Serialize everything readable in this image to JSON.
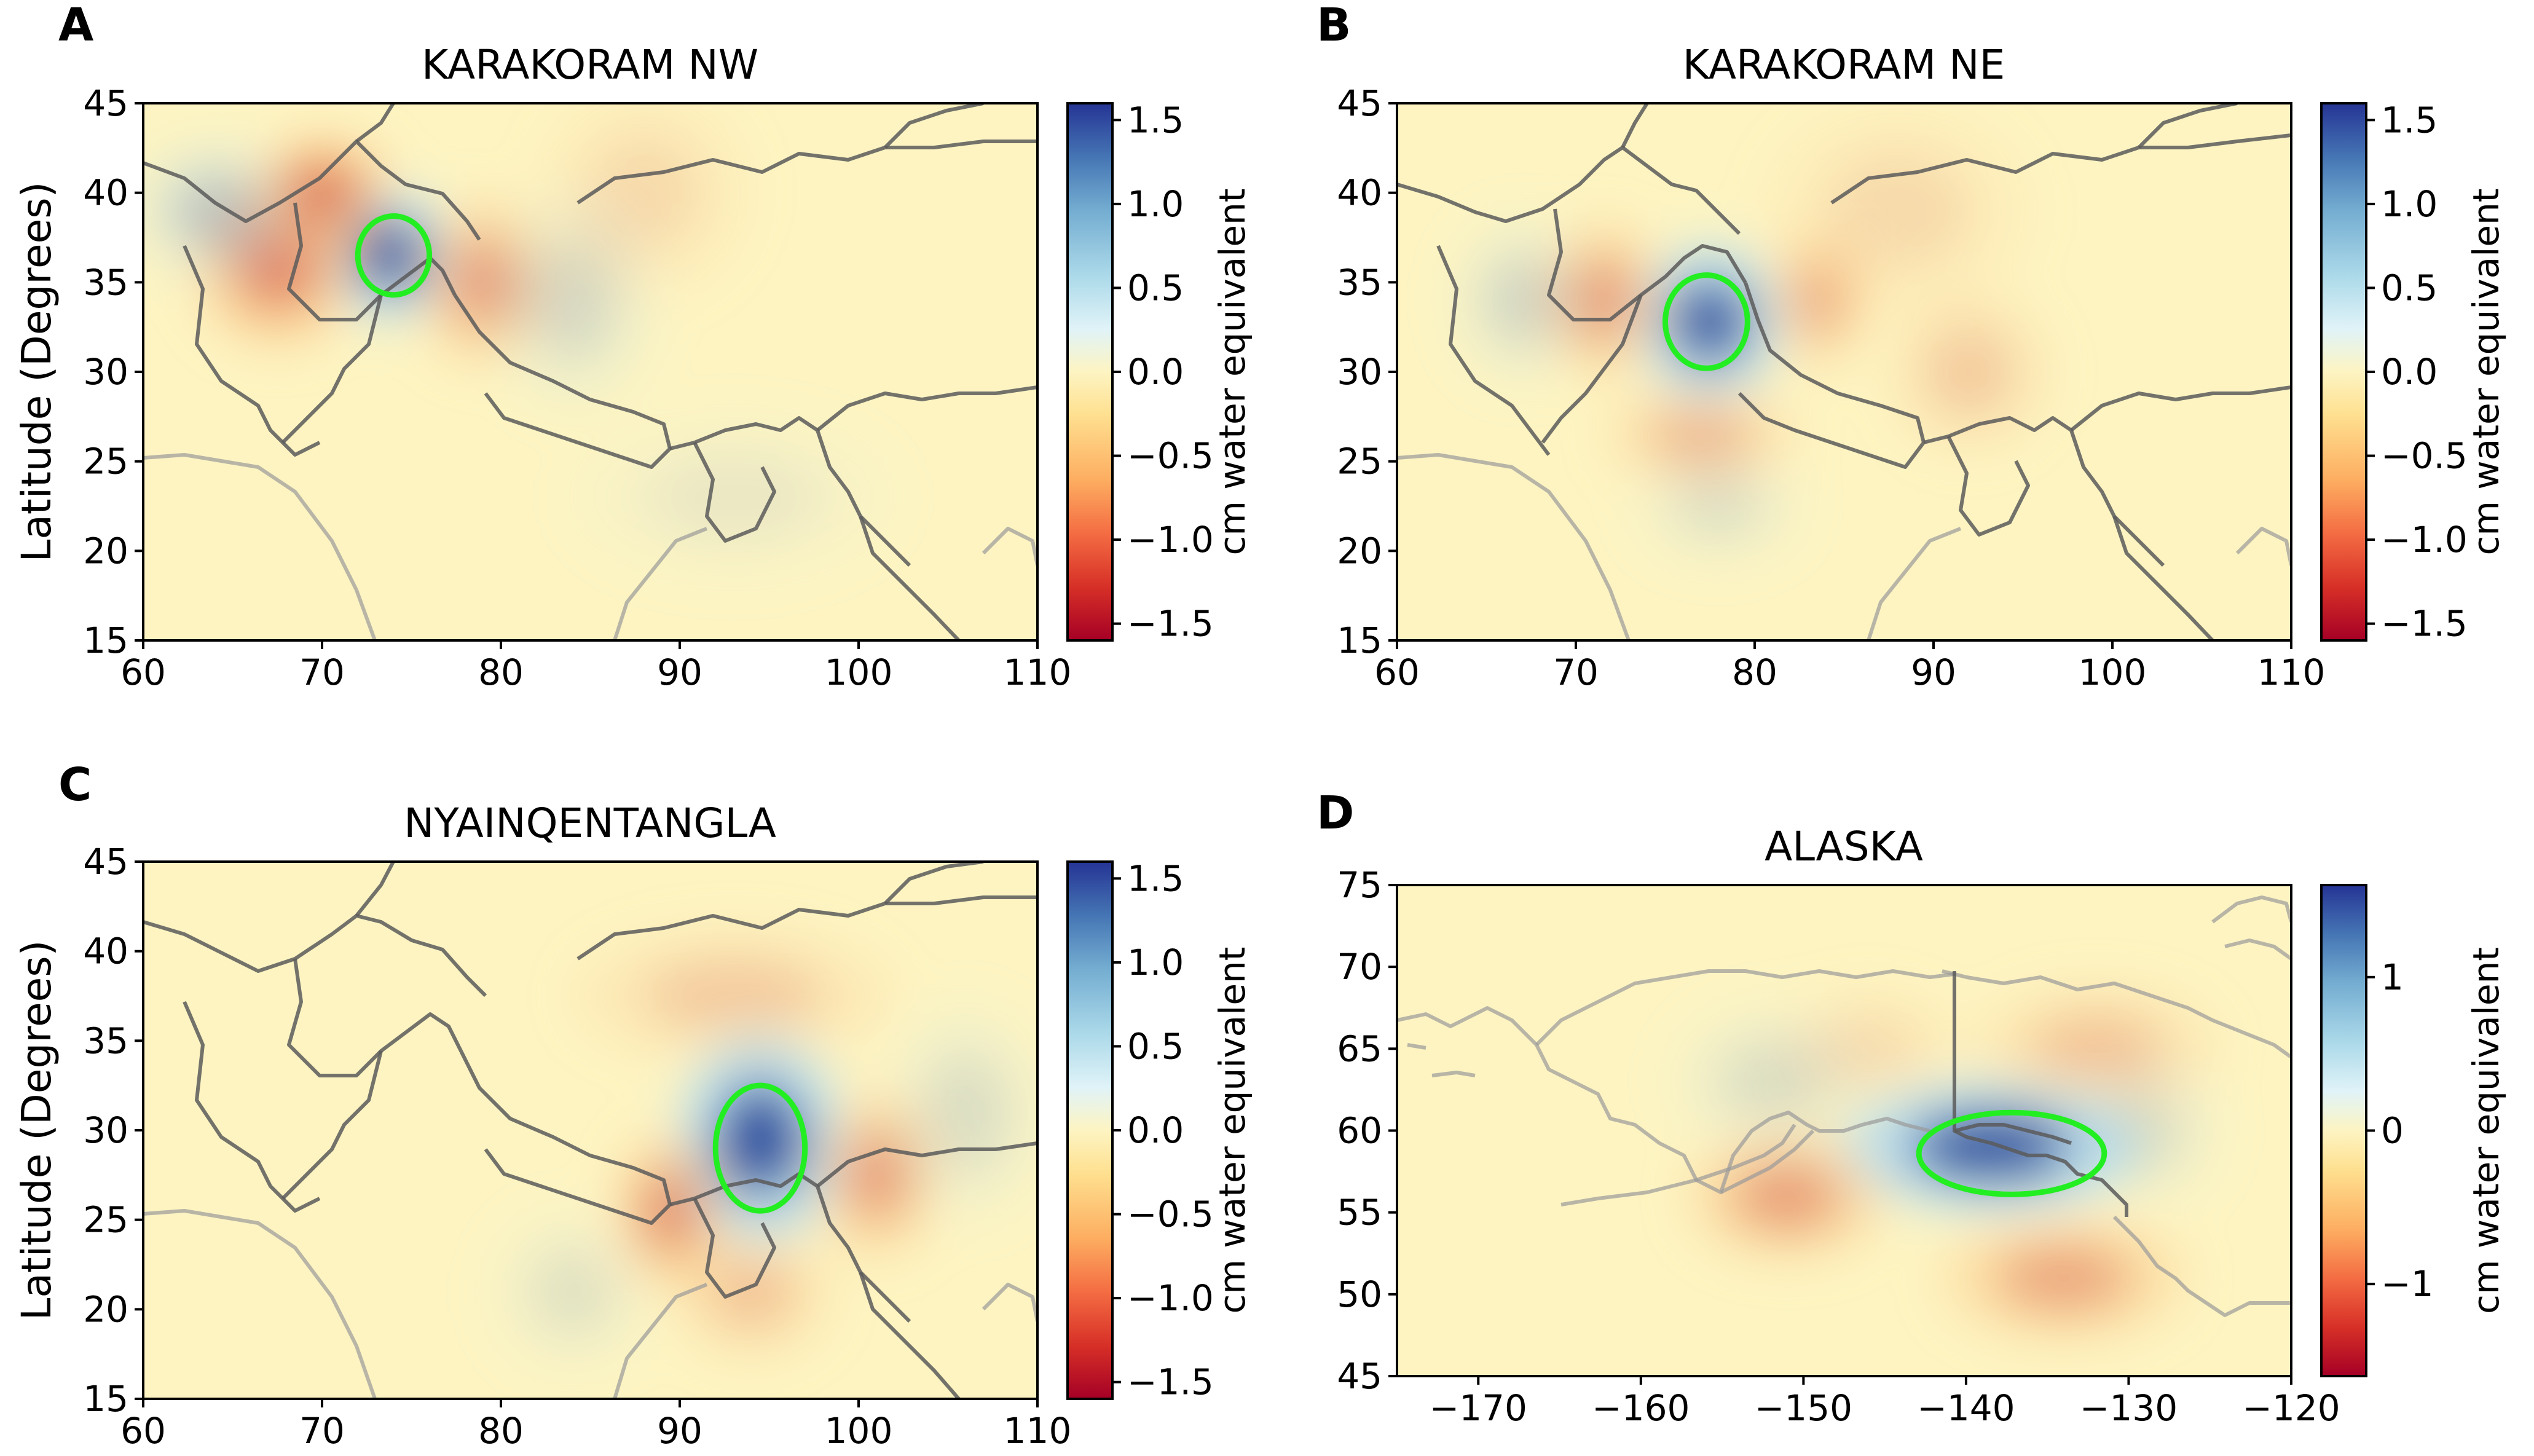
{
  "colors": {
    "background": "#ffffff",
    "field_base": "#fdf4c2",
    "positive": "#2b4fa0",
    "negative": "#c9302b",
    "region_outline": "#22ee22"
  },
  "chart_data": [
    {
      "letter": "A",
      "type": "heatmap",
      "title": "KARAKORAM NW",
      "xlabel": "",
      "ylabel": "Latitude (Degrees)",
      "xlim": [
        60,
        110
      ],
      "ylim": [
        15,
        45
      ],
      "xticks": [
        "60",
        "70",
        "80",
        "90",
        "100",
        "110"
      ],
      "yticks": [
        "15",
        "20",
        "25",
        "30",
        "35",
        "40",
        "45"
      ],
      "colorbar": {
        "label": "cm water equivalent",
        "range": [
          -1.6,
          1.6
        ],
        "ticks": [
          "1.5",
          "1.0",
          "0.5",
          "0.0",
          "−0.5",
          "−1.0",
          "−1.5"
        ],
        "tick_values": [
          1.5,
          1.0,
          0.5,
          0.0,
          -0.5,
          -1.0,
          -1.5
        ]
      },
      "region": {
        "lon": 74,
        "lat": 36.5,
        "rx_deg": 2.0,
        "ry_deg": 2.2
      },
      "features": [
        {
          "lon": 73.8,
          "lat": 36.5,
          "amp": 1.6,
          "sx": 2.2,
          "sy": 2.4
        },
        {
          "lon": 67.5,
          "lat": 36,
          "amp": -0.6,
          "sx": 3,
          "sy": 3
        },
        {
          "lon": 70,
          "lat": 40,
          "amp": -0.7,
          "sx": 2.5,
          "sy": 2.0
        },
        {
          "lon": 79,
          "lat": 35,
          "amp": -0.45,
          "sx": 2.5,
          "sy": 3
        },
        {
          "lon": 64,
          "lat": 39,
          "amp": 0.3,
          "sx": 3,
          "sy": 2.5
        },
        {
          "lon": 84,
          "lat": 34,
          "amp": 0.18,
          "sx": 3,
          "sy": 4
        },
        {
          "lon": 88,
          "lat": 40,
          "amp": -0.12,
          "sx": 4,
          "sy": 4
        },
        {
          "lon": 93,
          "lat": 23,
          "amp": 0.08,
          "sx": 6,
          "sy": 3
        }
      ]
    },
    {
      "letter": "B",
      "type": "heatmap",
      "title": "KARAKORAM NE",
      "xlabel": "",
      "ylabel": "",
      "xlim": [
        60,
        110
      ],
      "ylim": [
        15,
        45
      ],
      "xticks": [
        "60",
        "70",
        "80",
        "90",
        "100",
        "110"
      ],
      "yticks": [
        "15",
        "20",
        "25",
        "30",
        "35",
        "40",
        "45"
      ],
      "colorbar": {
        "label": "cm water equivalent",
        "range": [
          -1.6,
          1.6
        ],
        "ticks": [
          "1.5",
          "1.0",
          "0.5",
          "0.0",
          "−0.5",
          "−1.0",
          "−1.5"
        ],
        "tick_values": [
          1.5,
          1.0,
          0.5,
          0.0,
          -0.5,
          -1.0,
          -1.5
        ]
      },
      "region": {
        "lon": 77.3,
        "lat": 32.8,
        "rx_deg": 2.3,
        "ry_deg": 2.6
      },
      "features": [
        {
          "lon": 77.5,
          "lat": 32.8,
          "amp": 1.7,
          "sx": 2.6,
          "sy": 2.8
        },
        {
          "lon": 71.5,
          "lat": 34,
          "amp": -0.45,
          "sx": 2.3,
          "sy": 2.8
        },
        {
          "lon": 83.5,
          "lat": 34,
          "amp": -0.35,
          "sx": 2.0,
          "sy": 2.5
        },
        {
          "lon": 77,
          "lat": 26.5,
          "amp": -0.3,
          "sx": 3.5,
          "sy": 2.0
        },
        {
          "lon": 67,
          "lat": 34,
          "amp": 0.2,
          "sx": 2.5,
          "sy": 3
        },
        {
          "lon": 78,
          "lat": 22.5,
          "amp": 0.15,
          "sx": 3,
          "sy": 2
        },
        {
          "lon": 92,
          "lat": 30,
          "amp": -0.2,
          "sx": 3,
          "sy": 3
        },
        {
          "lon": 88,
          "lat": 39,
          "amp": -0.12,
          "sx": 5,
          "sy": 4
        }
      ]
    },
    {
      "letter": "C",
      "type": "heatmap",
      "title": "NYAINQENTANGLA",
      "xlabel": "",
      "ylabel": "Latitude (Degrees)",
      "xlim": [
        60,
        110
      ],
      "ylim": [
        15,
        45
      ],
      "xticks": [
        "60",
        "70",
        "80",
        "90",
        "100",
        "110"
      ],
      "yticks": [
        "15",
        "20",
        "25",
        "30",
        "35",
        "40",
        "45"
      ],
      "colorbar": {
        "label": "cm water equivalent",
        "range": [
          -1.6,
          1.6
        ],
        "ticks": [
          "1.5",
          "1.0",
          "0.5",
          "0.0",
          "−0.5",
          "−1.0",
          "−1.5"
        ],
        "tick_values": [
          1.5,
          1.0,
          0.5,
          0.0,
          -0.5,
          -1.0,
          -1.5
        ]
      },
      "region": {
        "lon": 94.5,
        "lat": 29,
        "rx_deg": 2.5,
        "ry_deg": 3.5
      },
      "features": [
        {
          "lon": 94.5,
          "lat": 29.5,
          "amp": 1.7,
          "sx": 3.0,
          "sy": 3.8
        },
        {
          "lon": 89.5,
          "lat": 25.5,
          "amp": -0.55,
          "sx": 2.0,
          "sy": 2.8
        },
        {
          "lon": 101,
          "lat": 27.5,
          "amp": -0.45,
          "sx": 2.3,
          "sy": 3
        },
        {
          "lon": 94,
          "lat": 21,
          "amp": -0.25,
          "sx": 3,
          "sy": 2.5
        },
        {
          "lon": 93,
          "lat": 37.5,
          "amp": -0.2,
          "sx": 6,
          "sy": 2.5
        },
        {
          "lon": 106,
          "lat": 31,
          "amp": 0.15,
          "sx": 3,
          "sy": 4
        },
        {
          "lon": 84,
          "lat": 21,
          "amp": 0.12,
          "sx": 3,
          "sy": 3
        }
      ]
    },
    {
      "letter": "D",
      "type": "heatmap",
      "title": "ALASKA",
      "xlabel": "",
      "ylabel": "",
      "xlim": [
        -175,
        -120
      ],
      "ylim": [
        45,
        75
      ],
      "xticks": [
        "−170",
        "−160",
        "−150",
        "−140",
        "−130",
        "−120"
      ],
      "xtick_values": [
        -170,
        -160,
        -150,
        -140,
        -130,
        -120
      ],
      "yticks": [
        "45",
        "50",
        "55",
        "60",
        "65",
        "70",
        "75"
      ],
      "colorbar": {
        "label": "cm water equivalent",
        "range": [
          -1.6,
          1.6
        ],
        "ticks": [
          "1",
          "0",
          "−1"
        ],
        "tick_values": [
          1,
          0,
          -1
        ]
      },
      "region": {
        "lon": -137.2,
        "lat": 58.6,
        "rx_deg": 5.7,
        "ry_deg": 2.5
      },
      "features": [
        {
          "lon": -138.5,
          "lat": 59,
          "amp": 1.6,
          "sx": 6,
          "sy": 2.6
        },
        {
          "lon": -151,
          "lat": 56,
          "amp": -0.45,
          "sx": 4,
          "sy": 2.5
        },
        {
          "lon": -134,
          "lat": 51,
          "amp": -0.4,
          "sx": 5,
          "sy": 2.5
        },
        {
          "lon": -132,
          "lat": 65,
          "amp": -0.25,
          "sx": 5,
          "sy": 2.5
        },
        {
          "lon": -146,
          "lat": 65,
          "amp": -0.12,
          "sx": 4,
          "sy": 2.5
        },
        {
          "lon": -152,
          "lat": 63,
          "amp": 0.15,
          "sx": 4,
          "sy": 3
        },
        {
          "lon": -129,
          "lat": 60,
          "amp": 0.15,
          "sx": 3,
          "sy": 3
        }
      ]
    }
  ]
}
